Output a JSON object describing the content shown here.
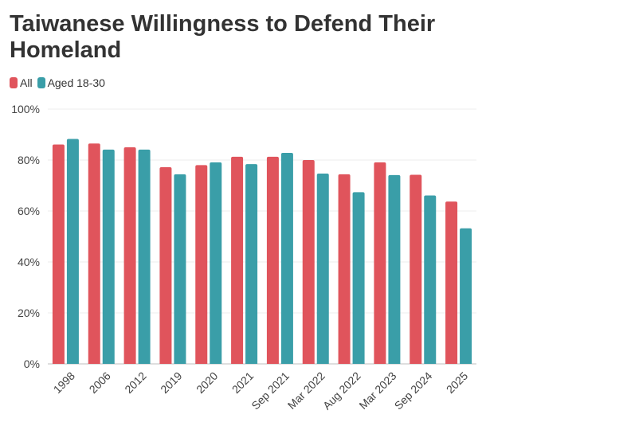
{
  "chart_data": {
    "type": "bar",
    "title": "Taiwanese Willingness to Defend Their Homeland",
    "xlabel": "",
    "ylabel": "",
    "ylim": [
      0,
      100
    ],
    "y_ticks": [
      0,
      20,
      40,
      60,
      80,
      100
    ],
    "y_tick_labels": [
      "0%",
      "20%",
      "40%",
      "60%",
      "80%",
      "100%"
    ],
    "categories": [
      "1998",
      "2006",
      "2012",
      "2019",
      "2020",
      "2021",
      "Sep 2021",
      "Mar 2022",
      "Aug 2022",
      "Mar 2023",
      "Sep 2024",
      "2025"
    ],
    "series": [
      {
        "name": "All",
        "color": "#e0545c",
        "values": [
          86.1,
          86.5,
          85,
          77.2,
          78,
          81.3,
          81.3,
          80,
          74.4,
          79.1,
          74.2,
          63.7
        ]
      },
      {
        "name": "Aged 18-30",
        "color": "#3a9ea8",
        "values": [
          88.3,
          84.1,
          84.1,
          74.4,
          79.1,
          78.4,
          82.8,
          74.7,
          67.4,
          74.1,
          66.1,
          53.2
        ]
      }
    ],
    "legend": "top-left",
    "grid": true
  }
}
